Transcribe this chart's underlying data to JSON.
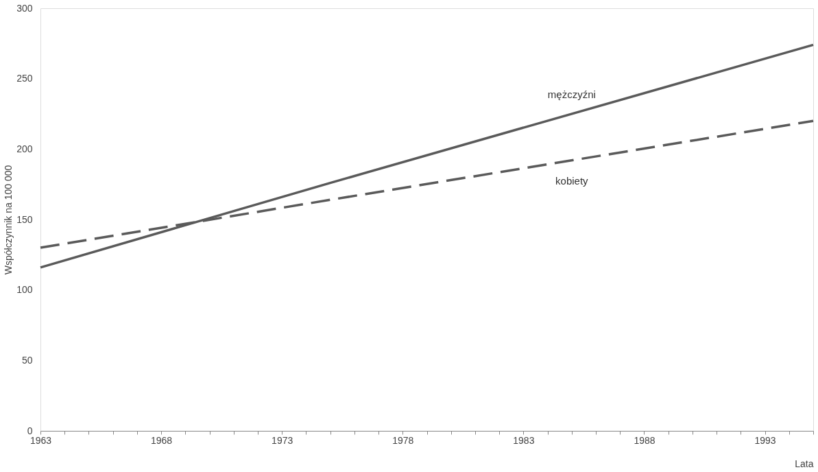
{
  "chart_data": {
    "type": "line",
    "xlabel": "Lata",
    "ylabel": "Współczynnik na 100 000",
    "x": [
      1963,
      1975,
      1995
    ],
    "series": [
      {
        "name": "mężczyźni",
        "color": "#5a5a5a",
        "line_style": "solid",
        "values": [
          116,
          176,
          274
        ]
      },
      {
        "name": "kobiety",
        "color": "#5a5a5a",
        "line_style": "dashed",
        "values": [
          130,
          164,
          220
        ]
      }
    ],
    "xlim": [
      1963,
      1995
    ],
    "ylim": [
      0,
      300
    ],
    "xticks": [
      1963,
      {
        "value": 1964,
        "label": null
      },
      {
        "value": 1965,
        "label": null
      },
      {
        "value": 1966,
        "label": null
      },
      {
        "value": 1967,
        "label": null
      },
      1968,
      {
        "value": 1969,
        "label": null
      },
      {
        "value": 1970,
        "label": null
      },
      {
        "value": 1971,
        "label": null
      },
      {
        "value": 1972,
        "label": null
      },
      1973,
      {
        "value": 1974,
        "label": null
      },
      {
        "value": 1975,
        "label": null
      },
      {
        "value": 1976,
        "label": null
      },
      {
        "value": 1977,
        "label": null
      },
      1978,
      {
        "value": 1979,
        "label": null
      },
      {
        "value": 1980,
        "label": null
      },
      {
        "value": 1981,
        "label": null
      },
      {
        "value": 1982,
        "label": null
      },
      1983,
      {
        "value": 1984,
        "label": null
      },
      {
        "value": 1985,
        "label": null
      },
      {
        "value": 1986,
        "label": null
      },
      {
        "value": 1987,
        "label": null
      },
      1988,
      {
        "value": 1989,
        "label": null
      },
      {
        "value": 1990,
        "label": null
      },
      {
        "value": 1991,
        "label": null
      },
      {
        "value": 1992,
        "label": null
      },
      1993,
      {
        "value": 1994,
        "label": null
      },
      {
        "value": 1995,
        "label": null
      }
    ],
    "yticks": [
      0,
      50,
      100,
      150,
      200,
      250,
      300
    ],
    "grid": false,
    "marker": "none"
  }
}
